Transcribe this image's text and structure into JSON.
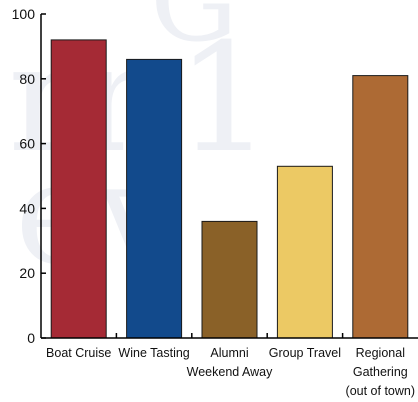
{
  "chart_data": {
    "type": "bar",
    "title": "",
    "xlabel": "",
    "ylabel": "",
    "ylim": [
      0,
      100
    ],
    "yticks": [
      0,
      20,
      40,
      60,
      80,
      100
    ],
    "grid": false,
    "legend": "none",
    "categories": [
      [
        "Boat Cruise"
      ],
      [
        "Wine Tasting"
      ],
      [
        "Alumni",
        "Weekend Away"
      ],
      [
        "Group Travel"
      ],
      [
        "Regional",
        "Gathering",
        "(out of town)"
      ]
    ],
    "values": [
      92,
      86,
      36,
      53,
      81
    ],
    "colors": [
      "#a52a35",
      "#124a8c",
      "#8a6128",
      "#ecc964",
      "#ad6a34"
    ]
  }
}
